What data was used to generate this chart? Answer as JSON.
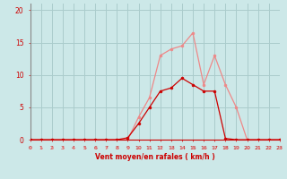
{
  "x": [
    0,
    1,
    2,
    3,
    4,
    5,
    6,
    7,
    8,
    9,
    10,
    11,
    12,
    13,
    14,
    15,
    16,
    17,
    18,
    19,
    20,
    21,
    22,
    23
  ],
  "vent_moyen": [
    0,
    0,
    0,
    0,
    0,
    0,
    0,
    0,
    0,
    0.3,
    2.5,
    5.0,
    7.5,
    8.0,
    9.5,
    8.5,
    7.5,
    7.5,
    0.2,
    0,
    0,
    0,
    0,
    0
  ],
  "rafales": [
    0,
    0,
    0,
    0,
    0,
    0,
    0,
    0,
    0,
    0,
    3.5,
    6.5,
    13.0,
    14.0,
    14.5,
    16.5,
    8.5,
    13.0,
    8.5,
    5.0,
    0,
    0,
    0,
    0
  ],
  "bg_color": "#cce8e8",
  "grid_color": "#aacccc",
  "color_moyen": "#cc0000",
  "color_rafales": "#ee8888",
  "xlabel": "Vent moyen/en rafales ( km/h )",
  "ylabel_ticks": [
    0,
    5,
    10,
    15,
    20
  ],
  "xtick_labels": [
    "0",
    "1",
    "2",
    "3",
    "4",
    "5",
    "6",
    "7",
    "8",
    "9",
    "10",
    "11",
    "12",
    "13",
    "14",
    "15",
    "16",
    "17",
    "18",
    "19",
    "20",
    "21",
    "22",
    "23"
  ],
  "xlim": [
    0,
    23
  ],
  "ylim": [
    0,
    21
  ],
  "marker_size": 2.0
}
